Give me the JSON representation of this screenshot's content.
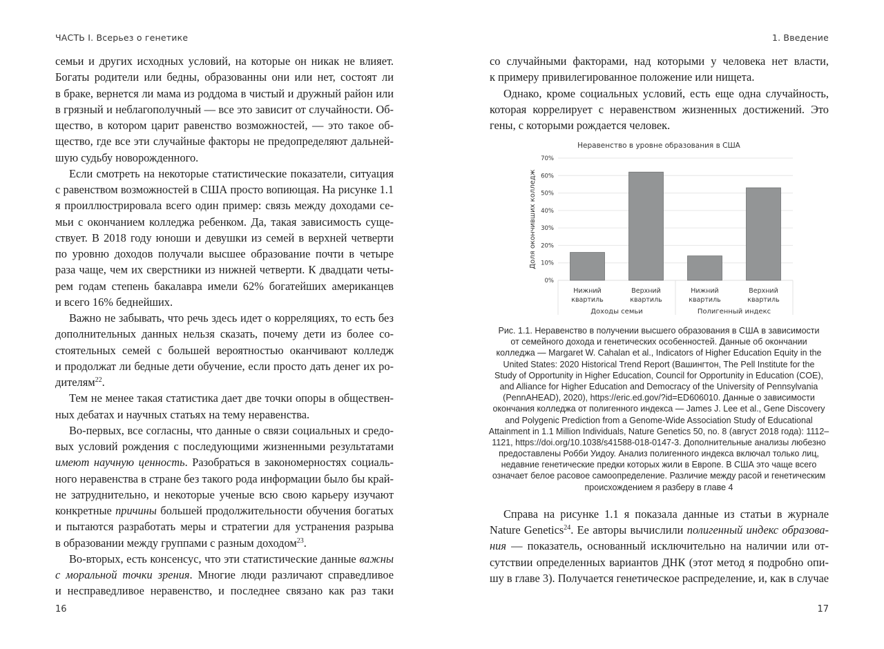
{
  "header": {
    "left": "ЧАСТЬ I. Всерьез о генетике",
    "right": "1. Введение"
  },
  "page_numbers": {
    "left": "16",
    "right": "17"
  },
  "left_page": {
    "paragraphs": [
      {
        "indent": false,
        "lines": [
          "семьи и других исходных условий, на которые он никак не влияет.",
          "Богаты родители или бедны, образованны они или нет, состоят ли",
          "в браке, вернется ли мама из роддома в чистый и дружный район или",
          "в грязный и неблагополучный — все это зависит от случайности. Об-",
          "щество, в котором царит равенство возможностей, — это такое об-",
          "щество, где все эти случайные факторы не предопределяют дальней-",
          "шую судьбу новорожденного."
        ]
      },
      {
        "indent": true,
        "lines": [
          "Если смотреть на некоторые статистические показатели, ситуация",
          "с равенством возможностей в США просто вопиющая. На рисунке 1.1",
          "я проиллюстрировала всего один пример: связь между доходами се-",
          "мьи с окончанием колледжа ребенком. Да, такая зависимость суще-",
          "ствует. В 2018 году юноши и девушки из семей в верхней четверти",
          "по уровню доходов получали высшее образование почти в четыре",
          "раза чаще, чем их сверстники из нижней четверти. К двадцати четы-",
          "рем годам степень бакалавра имели 62% богатейших американцев",
          "и всего 16% беднейших."
        ]
      },
      {
        "indent": true,
        "lines": [
          "Важно не забывать, что речь здесь идет о корреляциях, то есть без",
          "дополнительных данных нельзя сказать, почему дети из более со-",
          "стоятельных семей с большей вероятностью оканчивают колледж",
          "и продолжат ли бедные дети обучение, если просто дать денег их ро-",
          [
            {
              "t": "дителям"
            },
            {
              "t": "22",
              "s": "sup"
            },
            {
              "t": "."
            }
          ]
        ]
      },
      {
        "indent": true,
        "lines": [
          "Тем не менее такая статистика дает две точки опоры в обществен-",
          "ных дебатах и научных статьях на тему неравенства."
        ]
      },
      {
        "indent": true,
        "lines": [
          "Во-первых, все согласны, что данные о связи социальных и средо-",
          "вых условий рождения с последующими жизненными результатами",
          [
            {
              "t": "имеют научную ценность",
              "s": "i"
            },
            {
              "t": ". Разобраться в закономерностях социаль-"
            }
          ],
          "ного неравенства в стране без такого рода информации было бы край-",
          "не затруднительно, и некоторые ученые всю свою карьеру изучают",
          [
            {
              "t": "конкретные "
            },
            {
              "t": "причины",
              "s": "i"
            },
            {
              "t": " большей продолжительности обучения богатых"
            }
          ],
          "и пытаются разработать меры и стратегии для устранения разрыва",
          [
            {
              "t": "в образовании между группами с разным доходом"
            },
            {
              "t": "23",
              "s": "sup"
            },
            {
              "t": "."
            }
          ]
        ]
      },
      {
        "indent": true,
        "continues": true,
        "lines": [
          [
            {
              "t": "Во-вторых, есть консенсус, что эти статистические данные "
            },
            {
              "t": "важны",
              "s": "i"
            }
          ],
          [
            {
              "t": "с моральной точки зрения",
              "s": "i"
            },
            {
              "t": ". Многие люди различают справедливое"
            }
          ],
          "и несправедливое неравенство, и последнее связано как раз таки"
        ]
      }
    ]
  },
  "right_page": {
    "paragraphs_top": [
      {
        "indent": false,
        "lines": [
          "со случайными факторами, над которыми у человека нет власти,",
          "к примеру привилегированное положение или нищета."
        ]
      },
      {
        "indent": true,
        "lines": [
          "Однако, кроме социальных условий, есть еще одна случайность,",
          "которая коррелирует с неравенством жизненных достижений. Это",
          "гены, с которыми рождается человек."
        ]
      }
    ],
    "caption_lines": [
      "Рис. 1.1. Неравенство в получении высшего образования в США в зависимости",
      "от семейного дохода и генетических особенностей. Данные об окончании",
      "колледжа — Margaret W. Cahalan et al., Indicators of Higher Education Equity in the",
      "United States: 2020 Historical Trend Report (Вашингтон, The Pell Institute for the",
      "Study of Opportunity in Higher Education, Council for Opportunity in Education (COE),",
      "and Alliance for Higher Education and Democracy of the University of Pennsylvania",
      "(PennAHEAD), 2020), https://eric.ed.gov/?id=ED606010. Данные о зависимости",
      "окончания колледжа от полигенного индекса — James J. Lee et al., Gene Discovery",
      "and Polygenic Prediction from a Genome-Wide Association Study of Educational",
      "Attainment in 1.1 Million Individuals, Nature Genetics 50, no. 8 (август 2018 года): 1112–",
      "1121, https://doi.org/10.1038/s41588-018-0147-3. Дополнительные анализы любезно",
      "предоставлены Робби Уидоу. Анализ полигенного индекса включал только лиц,",
      "недавние генетические предки которых жили в Европе. В США это чаще всего",
      "означает белое расовое самоопределение. Различие между расой и генетическим",
      "происхождением я разберу в главе 4"
    ],
    "paragraphs_bottom": [
      {
        "indent": true,
        "continues": true,
        "lines": [
          "Справа на рисунке 1.1 я показала данные из статьи в журнале",
          [
            {
              "t": "Nature Genetics"
            },
            {
              "t": "24",
              "s": "sup"
            },
            {
              "t": ". Ее авторы вычислили "
            },
            {
              "t": "полигенный индекс образова-",
              "s": "i"
            }
          ],
          [
            {
              "t": "ния",
              "s": "i"
            },
            {
              "t": " — показатель, основанный исключительно на наличии или от-"
            }
          ],
          "сутствии определенных вариантов ДНК (этот метод я подробно опи-",
          "шу в главе 3). Получается генетическое распределение, и, как в случае"
        ]
      }
    ]
  },
  "chart_data": {
    "type": "bar",
    "title": "Неравенство в уровне образования в США",
    "ylabel": "Доля окончивших колледж",
    "xlabel": "",
    "ylim": [
      0,
      70
    ],
    "yticks": [
      "0%",
      "10%",
      "20%",
      "30%",
      "40%",
      "50%",
      "60%",
      "70%"
    ],
    "grid": true,
    "bar_color": "#939596",
    "groups": [
      {
        "label": "Доходы семьи",
        "categories": [
          [
            "Нижний",
            "квартиль"
          ],
          [
            "Верхний",
            "квартиль"
          ]
        ],
        "values": [
          16,
          62
        ]
      },
      {
        "label": "Полигенный индекс",
        "categories": [
          [
            "Нижний",
            "квартиль"
          ],
          [
            "Верхний",
            "квартиль"
          ]
        ],
        "values": [
          14,
          53
        ]
      }
    ]
  }
}
